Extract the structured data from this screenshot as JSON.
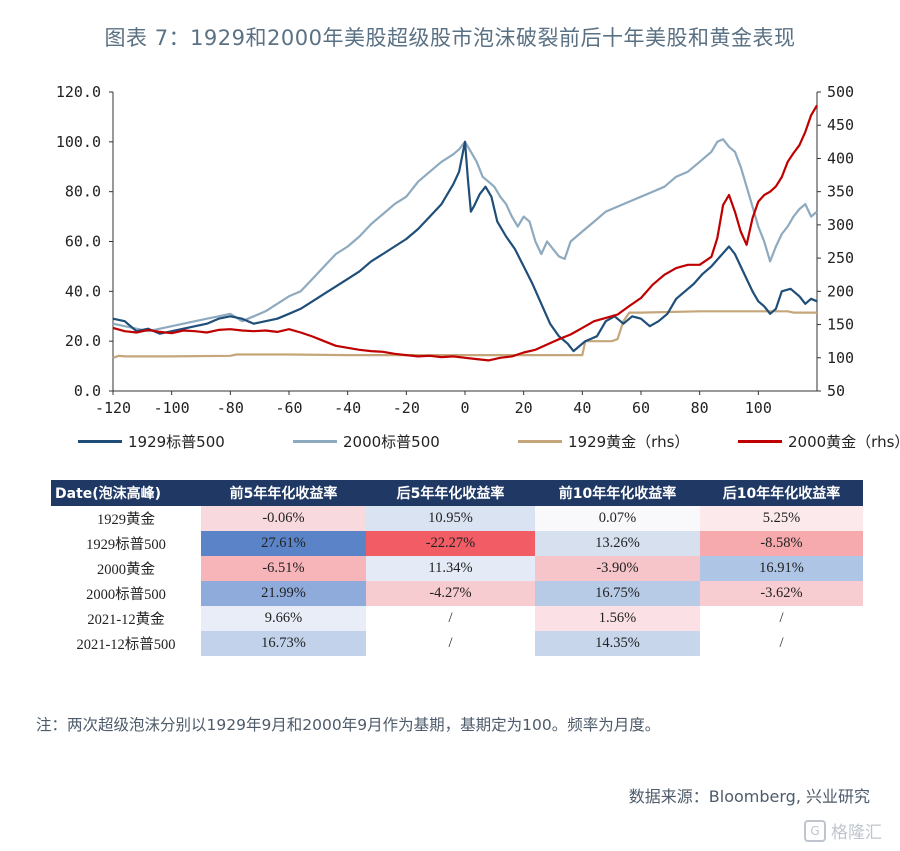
{
  "title": "图表 7：1929和2000年美股超级股市泡沫破裂前后十年美股和黄金表现",
  "chart_data": {
    "type": "line",
    "x_ticks": [
      "-120",
      "-100",
      "-80",
      "-60",
      "-40",
      "-20",
      "0",
      "20",
      "40",
      "60",
      "80",
      "100"
    ],
    "y_left_ticks": [
      "0.0",
      "20.0",
      "40.0",
      "60.0",
      "80.0",
      "100.0",
      "120.0"
    ],
    "y_right_ticks": [
      "50",
      "100",
      "150",
      "200",
      "250",
      "300",
      "350",
      "400",
      "450",
      "500"
    ],
    "xlim": [
      -120,
      120
    ],
    "ylim_left": [
      0,
      120
    ],
    "ylim_right": [
      50,
      500
    ],
    "series": [
      {
        "name": "1929标普500",
        "axis": "left",
        "color": "#1f4e79",
        "points": [
          [
            -120,
            29
          ],
          [
            -116,
            28
          ],
          [
            -112,
            24
          ],
          [
            -108,
            25
          ],
          [
            -104,
            23
          ],
          [
            -100,
            24
          ],
          [
            -96,
            25
          ],
          [
            -92,
            26
          ],
          [
            -88,
            27
          ],
          [
            -84,
            29
          ],
          [
            -80,
            30
          ],
          [
            -76,
            29
          ],
          [
            -72,
            27
          ],
          [
            -68,
            28
          ],
          [
            -64,
            29
          ],
          [
            -60,
            31
          ],
          [
            -56,
            33
          ],
          [
            -52,
            36
          ],
          [
            -48,
            39
          ],
          [
            -44,
            42
          ],
          [
            -40,
            45
          ],
          [
            -36,
            48
          ],
          [
            -32,
            52
          ],
          [
            -28,
            55
          ],
          [
            -24,
            58
          ],
          [
            -20,
            61
          ],
          [
            -16,
            65
          ],
          [
            -12,
            70
          ],
          [
            -8,
            75
          ],
          [
            -4,
            83
          ],
          [
            -2,
            88
          ],
          [
            0,
            100
          ],
          [
            1,
            85
          ],
          [
            2,
            72
          ],
          [
            3,
            74
          ],
          [
            5,
            79
          ],
          [
            7,
            82
          ],
          [
            9,
            78
          ],
          [
            11,
            68
          ],
          [
            14,
            62
          ],
          [
            17,
            57
          ],
          [
            20,
            50
          ],
          [
            23,
            43
          ],
          [
            26,
            35
          ],
          [
            29,
            27
          ],
          [
            32,
            22
          ],
          [
            35,
            19
          ],
          [
            37,
            16
          ],
          [
            39,
            18
          ],
          [
            41,
            20
          ],
          [
            43,
            21
          ],
          [
            45,
            22
          ],
          [
            48,
            28
          ],
          [
            51,
            30
          ],
          [
            54,
            27
          ],
          [
            57,
            30
          ],
          [
            60,
            29
          ],
          [
            63,
            26
          ],
          [
            66,
            28
          ],
          [
            69,
            31
          ],
          [
            72,
            37
          ],
          [
            75,
            40
          ],
          [
            78,
            43
          ],
          [
            81,
            47
          ],
          [
            84,
            50
          ],
          [
            87,
            54
          ],
          [
            90,
            58
          ],
          [
            92,
            55
          ],
          [
            94,
            50
          ],
          [
            96,
            45
          ],
          [
            98,
            40
          ],
          [
            100,
            36
          ],
          [
            102,
            34
          ],
          [
            104,
            31
          ],
          [
            106,
            33
          ],
          [
            108,
            40
          ],
          [
            111,
            41
          ],
          [
            114,
            38
          ],
          [
            116,
            35
          ],
          [
            118,
            37
          ],
          [
            120,
            36
          ]
        ]
      },
      {
        "name": "2000标普500",
        "axis": "left",
        "color": "#8eaabf",
        "points": [
          [
            -120,
            27
          ],
          [
            -116,
            26
          ],
          [
            -112,
            25
          ],
          [
            -108,
            24
          ],
          [
            -104,
            25
          ],
          [
            -100,
            26
          ],
          [
            -96,
            27
          ],
          [
            -92,
            28
          ],
          [
            -88,
            29
          ],
          [
            -84,
            30
          ],
          [
            -80,
            31
          ],
          [
            -76,
            28
          ],
          [
            -72,
            30
          ],
          [
            -68,
            32
          ],
          [
            -64,
            35
          ],
          [
            -60,
            38
          ],
          [
            -56,
            40
          ],
          [
            -52,
            45
          ],
          [
            -48,
            50
          ],
          [
            -44,
            55
          ],
          [
            -40,
            58
          ],
          [
            -36,
            62
          ],
          [
            -32,
            67
          ],
          [
            -28,
            71
          ],
          [
            -24,
            75
          ],
          [
            -20,
            78
          ],
          [
            -16,
            84
          ],
          [
            -12,
            88
          ],
          [
            -8,
            92
          ],
          [
            -4,
            95
          ],
          [
            -2,
            97
          ],
          [
            0,
            100
          ],
          [
            2,
            96
          ],
          [
            4,
            92
          ],
          [
            6,
            86
          ],
          [
            8,
            84
          ],
          [
            10,
            82
          ],
          [
            12,
            78
          ],
          [
            14,
            75
          ],
          [
            16,
            70
          ],
          [
            18,
            66
          ],
          [
            20,
            70
          ],
          [
            22,
            68
          ],
          [
            24,
            60
          ],
          [
            26,
            55
          ],
          [
            28,
            60
          ],
          [
            30,
            57
          ],
          [
            32,
            54
          ],
          [
            34,
            53
          ],
          [
            36,
            60
          ],
          [
            38,
            62
          ],
          [
            40,
            64
          ],
          [
            44,
            68
          ],
          [
            48,
            72
          ],
          [
            52,
            74
          ],
          [
            56,
            76
          ],
          [
            60,
            78
          ],
          [
            64,
            80
          ],
          [
            68,
            82
          ],
          [
            72,
            86
          ],
          [
            76,
            88
          ],
          [
            80,
            92
          ],
          [
            84,
            96
          ],
          [
            86,
            100
          ],
          [
            88,
            101
          ],
          [
            90,
            98
          ],
          [
            92,
            96
          ],
          [
            94,
            90
          ],
          [
            96,
            82
          ],
          [
            98,
            74
          ],
          [
            100,
            66
          ],
          [
            102,
            60
          ],
          [
            104,
            52
          ],
          [
            106,
            58
          ],
          [
            108,
            63
          ],
          [
            110,
            66
          ],
          [
            112,
            70
          ],
          [
            114,
            73
          ],
          [
            116,
            75
          ],
          [
            118,
            70
          ],
          [
            120,
            72
          ]
        ]
      },
      {
        "name": "1929黄金（rhs）",
        "axis": "right",
        "color": "#c4a67a",
        "points": [
          [
            -120,
            100
          ],
          [
            -118,
            103
          ],
          [
            -116,
            102
          ],
          [
            -100,
            102
          ],
          [
            -80,
            103
          ],
          [
            -78,
            105
          ],
          [
            -60,
            105
          ],
          [
            -40,
            104
          ],
          [
            -20,
            104
          ],
          [
            0,
            104
          ],
          [
            20,
            104
          ],
          [
            36,
            104
          ],
          [
            40,
            104
          ],
          [
            41,
            125
          ],
          [
            44,
            125
          ],
          [
            50,
            125
          ],
          [
            52,
            128
          ],
          [
            54,
            155
          ],
          [
            56,
            168
          ],
          [
            60,
            168
          ],
          [
            80,
            170
          ],
          [
            100,
            170
          ],
          [
            110,
            170
          ],
          [
            112,
            168
          ],
          [
            120,
            168
          ]
        ]
      },
      {
        "name": "2000黄金（rhs）",
        "axis": "right",
        "color": "#c00000",
        "points": [
          [
            -120,
            145
          ],
          [
            -116,
            140
          ],
          [
            -112,
            138
          ],
          [
            -108,
            142
          ],
          [
            -104,
            139
          ],
          [
            -100,
            137
          ],
          [
            -96,
            141
          ],
          [
            -92,
            140
          ],
          [
            -88,
            138
          ],
          [
            -84,
            142
          ],
          [
            -80,
            143
          ],
          [
            -76,
            141
          ],
          [
            -72,
            140
          ],
          [
            -68,
            141
          ],
          [
            -64,
            139
          ],
          [
            -60,
            143
          ],
          [
            -56,
            138
          ],
          [
            -52,
            132
          ],
          [
            -48,
            125
          ],
          [
            -44,
            118
          ],
          [
            -40,
            115
          ],
          [
            -36,
            112
          ],
          [
            -32,
            110
          ],
          [
            -28,
            109
          ],
          [
            -24,
            106
          ],
          [
            -20,
            104
          ],
          [
            -16,
            102
          ],
          [
            -12,
            103
          ],
          [
            -8,
            101
          ],
          [
            -4,
            102
          ],
          [
            0,
            100
          ],
          [
            4,
            98
          ],
          [
            8,
            96
          ],
          [
            12,
            100
          ],
          [
            16,
            102
          ],
          [
            20,
            108
          ],
          [
            24,
            112
          ],
          [
            28,
            120
          ],
          [
            32,
            128
          ],
          [
            36,
            135
          ],
          [
            40,
            145
          ],
          [
            44,
            155
          ],
          [
            48,
            160
          ],
          [
            52,
            165
          ],
          [
            56,
            178
          ],
          [
            60,
            190
          ],
          [
            64,
            210
          ],
          [
            68,
            225
          ],
          [
            72,
            235
          ],
          [
            76,
            240
          ],
          [
            80,
            240
          ],
          [
            84,
            252
          ],
          [
            86,
            280
          ],
          [
            88,
            330
          ],
          [
            90,
            345
          ],
          [
            92,
            320
          ],
          [
            94,
            290
          ],
          [
            96,
            270
          ],
          [
            98,
            310
          ],
          [
            100,
            335
          ],
          [
            102,
            345
          ],
          [
            104,
            350
          ],
          [
            106,
            358
          ],
          [
            108,
            372
          ],
          [
            110,
            395
          ],
          [
            112,
            408
          ],
          [
            114,
            420
          ],
          [
            116,
            440
          ],
          [
            118,
            465
          ],
          [
            120,
            480
          ]
        ]
      }
    ]
  },
  "legend": [
    {
      "label": "1929标普500",
      "color": "#1f4e79"
    },
    {
      "label": "2000标普500",
      "color": "#8eaabf"
    },
    {
      "label": "1929黄金（rhs）",
      "color": "#c4a67a"
    },
    {
      "label": "2000黄金（rhs）",
      "color": "#c00000"
    }
  ],
  "table": {
    "headers": [
      "Date(泡沫高峰)",
      "前5年年化收益率",
      "后5年年化收益率",
      "前10年年化收益率",
      "后10年年化收益率"
    ],
    "rows": [
      {
        "label": "1929黄金",
        "cells": [
          {
            "text": "-0.06%",
            "bg": "#f8d9dd"
          },
          {
            "text": "10.95%",
            "bg": "#dae3f1"
          },
          {
            "text": "0.07%",
            "bg": "#f9f9fb"
          },
          {
            "text": "5.25%",
            "bg": "#fbe9ec"
          }
        ]
      },
      {
        "label": "1929标普500",
        "cells": [
          {
            "text": "27.61%",
            "bg": "#5a84c7"
          },
          {
            "text": "-22.27%",
            "bg": "#f25c65"
          },
          {
            "text": "13.26%",
            "bg": "#d6e0ef"
          },
          {
            "text": "-8.58%",
            "bg": "#f6aaae"
          }
        ]
      },
      {
        "label": "2000黄金",
        "cells": [
          {
            "text": "-6.51%",
            "bg": "#f7b5ba"
          },
          {
            "text": "11.34%",
            "bg": "#e4ebf6"
          },
          {
            "text": "-3.90%",
            "bg": "#f6c5c9"
          },
          {
            "text": "16.91%",
            "bg": "#afc5e5"
          }
        ]
      },
      {
        "label": "2000标普500",
        "cells": [
          {
            "text": "21.99%",
            "bg": "#8fabdc"
          },
          {
            "text": "-4.27%",
            "bg": "#f7ccd0"
          },
          {
            "text": "16.75%",
            "bg": "#b7cbe6"
          },
          {
            "text": "-3.62%",
            "bg": "#f7cdd1"
          }
        ]
      },
      {
        "label": "2021-12黄金",
        "cells": [
          {
            "text": "9.66%",
            "bg": "#e9edf7"
          },
          {
            "text": "/",
            "bg": "#ffffff"
          },
          {
            "text": "1.56%",
            "bg": "#fbe1e5"
          },
          {
            "text": "/",
            "bg": "#ffffff"
          }
        ]
      },
      {
        "label": "2021-12标普500",
        "cells": [
          {
            "text": "16.73%",
            "bg": "#c2d2ea"
          },
          {
            "text": "/",
            "bg": "#ffffff"
          },
          {
            "text": "14.35%",
            "bg": "#c8d6ec"
          },
          {
            "text": "/",
            "bg": "#ffffff"
          }
        ]
      }
    ]
  },
  "note": "注：两次超级泡沫分别以1929年9月和2000年9月作为基期，基期定为100。频率为月度。",
  "source": "数据来源：Bloomberg, 兴业研究",
  "watermark": "格隆汇",
  "watermark_logo": "G"
}
